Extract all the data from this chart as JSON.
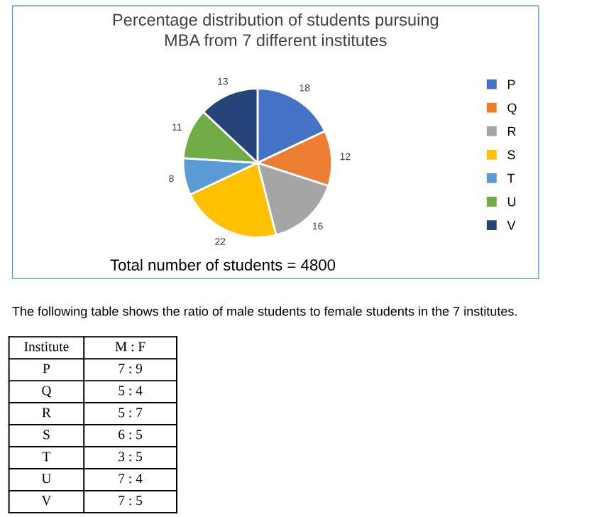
{
  "chart_data": [
    {
      "type": "pie",
      "title": "Percentage distribution of students pursuing\nMBA from 7 different institutes",
      "categories": [
        "P",
        "Q",
        "R",
        "S",
        "T",
        "U",
        "V"
      ],
      "values": [
        18,
        12,
        16,
        22,
        8,
        11,
        13
      ],
      "colors": [
        "#4472c4",
        "#ed7d31",
        "#a5a5a5",
        "#ffc000",
        "#5b9bd5",
        "#70ad47",
        "#264478"
      ],
      "data_labels": true,
      "legend": "right",
      "annotations": [
        "Total number of students = 4800"
      ]
    },
    {
      "type": "other",
      "title": "The following table shows the ratio of male students to female students in the 7 institutes.",
      "annotations": [
        "Institute",
        "M : F",
        "P",
        "7 : 9",
        "Q",
        "5 : 4",
        "R",
        "5 : 7",
        "S",
        "6 : 5",
        "T",
        "3 : 5",
        "U",
        "7 : 4",
        "V",
        "7 : 5"
      ]
    }
  ]
}
